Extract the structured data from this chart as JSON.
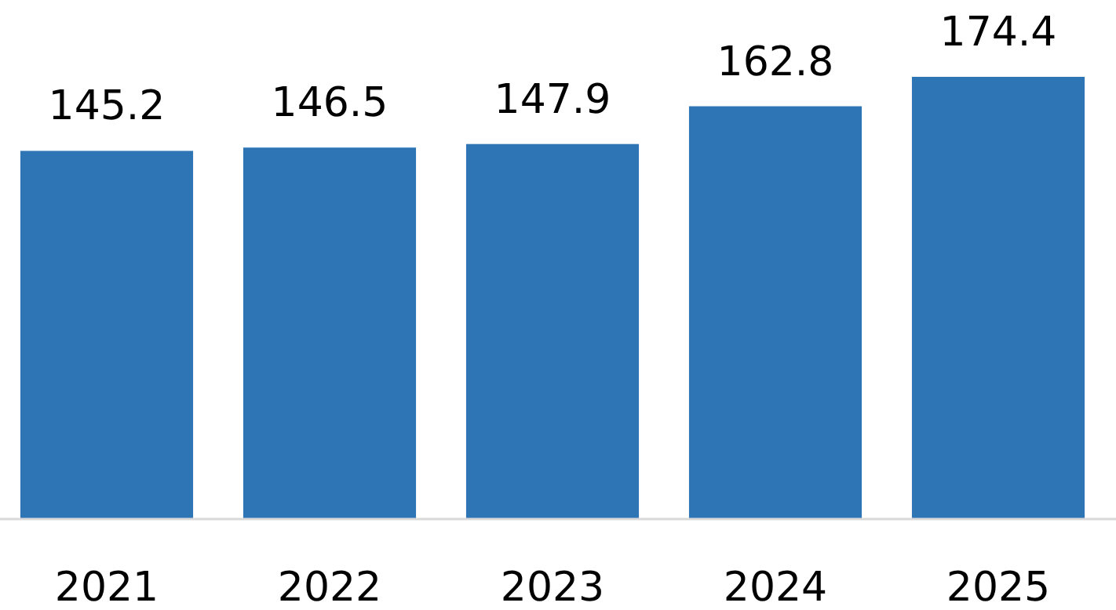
{
  "chart_data": {
    "type": "bar",
    "categories": [
      "2021",
      "2022",
      "2023",
      "2024",
      "2025"
    ],
    "values": [
      145.2,
      146.5,
      147.9,
      162.8,
      174.4
    ],
    "color": "#2e75b6",
    "data_labels": true
  }
}
